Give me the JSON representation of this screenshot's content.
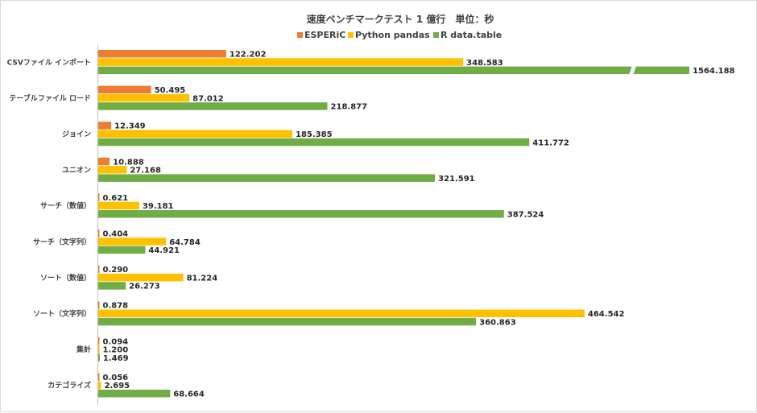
{
  "chart_data": {
    "type": "bar",
    "orientation": "horizontal",
    "title": "速度ベンチマークテスト 1 億行　単位：秒",
    "legend_position": "top",
    "xlim": [
      0,
      500
    ],
    "axis_break": {
      "series": "R data.table",
      "category": "CSVファイル インポート"
    },
    "categories": [
      "CSVファイル インポート",
      "テーブルファイル ロード",
      "ジョイン",
      "ユニオン",
      "サーチ（数値）",
      "サーチ（文字列）",
      "ソート（数値）",
      "ソート（文字列）",
      "集計",
      "カテゴライズ"
    ],
    "series": [
      {
        "name": "ESPERiC",
        "color": "#ed7d31",
        "values": [
          122.202,
          50.495,
          12.349,
          10.888,
          0.621,
          0.404,
          0.29,
          0.878,
          0.094,
          0.056
        ],
        "labels": [
          "122.202",
          "50.495",
          "12.349",
          "10.888",
          "0.621",
          "0.404",
          "0.290",
          "0.878",
          "0.094",
          "0.056"
        ]
      },
      {
        "name": "Python pandas",
        "color": "#ffc000",
        "values": [
          348.583,
          87.012,
          185.385,
          27.168,
          39.181,
          64.784,
          81.224,
          464.542,
          1.2,
          2.695
        ],
        "labels": [
          "348.583",
          "87.012",
          "185.385",
          "27.168",
          "39.181",
          "64.784",
          "81.224",
          "464.542",
          "1.200",
          "2.695"
        ]
      },
      {
        "name": "R data.table",
        "color": "#70ad47",
        "values": [
          1564.188,
          218.877,
          411.772,
          321.591,
          387.524,
          44.921,
          26.273,
          360.863,
          1.469,
          68.664
        ],
        "labels": [
          "1564.188",
          "218.877",
          "411.772",
          "321.591",
          "387.524",
          "44.921",
          "26.273",
          "360.863",
          "1.469",
          "68.664"
        ]
      }
    ]
  }
}
